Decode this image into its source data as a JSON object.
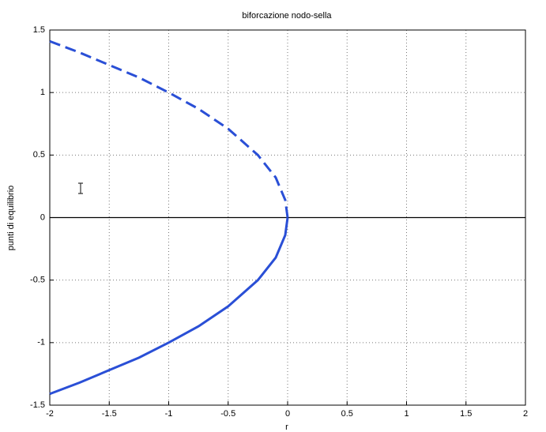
{
  "chart_data": {
    "type": "line",
    "title": "biforcazione nodo-sella",
    "xlabel": "r",
    "ylabel": "punti di equilibrio",
    "x": [
      -2,
      -1.75,
      -1.5,
      -1.25,
      -1,
      -0.75,
      -0.5,
      -0.25,
      -0.1,
      -0.02,
      0
    ],
    "series": [
      {
        "color": "#2a4fd6",
        "style": "dashed",
        "values": [
          1.41,
          1.32,
          1.22,
          1.12,
          1,
          0.87,
          0.71,
          0.5,
          0.32,
          0.14,
          0
        ]
      },
      {
        "color": "#2a4fd6",
        "style": "solid",
        "values": [
          -1.41,
          -1.32,
          -1.22,
          -1.12,
          -1,
          -0.87,
          -0.71,
          -0.5,
          -0.32,
          -0.14,
          0
        ]
      }
    ],
    "hline": {
      "value": 0,
      "color": "#000000"
    },
    "xlim": [
      -2,
      2
    ],
    "xticks": [
      -2,
      -1.5,
      -1,
      -0.5,
      0,
      0.5,
      1,
      1.5,
      2
    ],
    "ylim": [
      -1.5,
      1.5
    ],
    "yticks": [
      -1.5,
      -1,
      -0.5,
      0,
      0.5,
      1,
      1.5
    ],
    "grid": true
  }
}
